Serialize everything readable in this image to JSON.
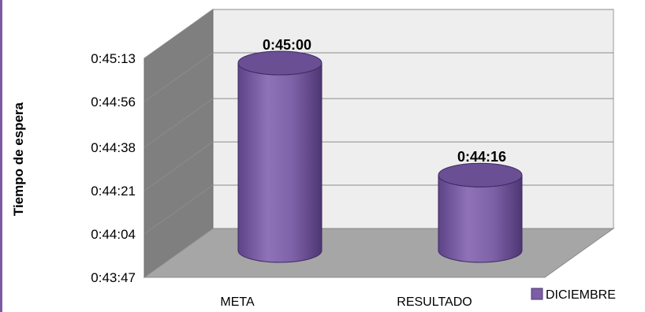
{
  "chart_data": {
    "type": "bar",
    "style": "3d-cylinder",
    "title": "",
    "xlabel": "",
    "ylabel": "Tiempo de espera",
    "categories": [
      "META",
      "RESULTADO"
    ],
    "series": [
      {
        "name": "DICIEMBRE",
        "values": [
          "0:45:00",
          "0:44:16"
        ],
        "seconds": [
          2700,
          2656
        ],
        "color": "#7d5ea6"
      }
    ],
    "data_labels": [
      "0:45:00",
      "0:44:16"
    ],
    "y_ticks": [
      "0:43:47",
      "0:44:04",
      "0:44:21",
      "0:44:38",
      "0:44:56",
      "0:45:13"
    ],
    "y_tick_seconds": [
      2627,
      2644,
      2661,
      2678,
      2696,
      2713
    ],
    "ylim_seconds": [
      2627,
      2713
    ],
    "grid": true,
    "legend": "bottom-right",
    "colors": {
      "series": "#7d5ea6",
      "wall": "#eeeeee",
      "floor": "#a6a6a6",
      "side_wall": "#808080",
      "gridline": "#8c8c8c",
      "accent_rule": "#7e5aa3"
    }
  }
}
